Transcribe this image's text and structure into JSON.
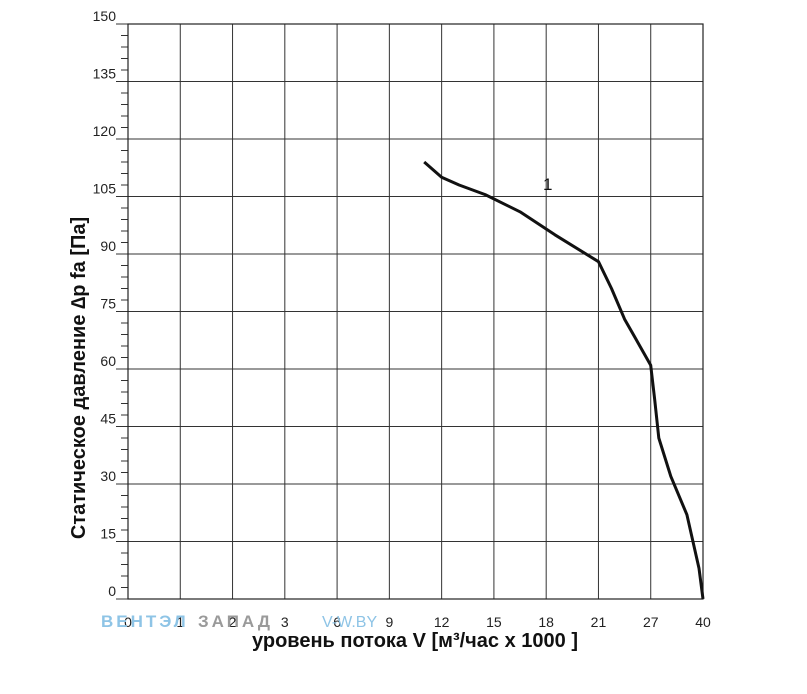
{
  "chart_data": {
    "type": "line",
    "xlabel": "уровень потока  V [м³/час х 1000 ]",
    "ylabel": "Статическое давление  ∆p fa [Па]",
    "x_ticks": [
      "0",
      "1",
      "2",
      "3",
      "6",
      "9",
      "12",
      "15",
      "18",
      "21",
      "27",
      "40"
    ],
    "y_ticks": [
      0,
      15,
      30,
      45,
      60,
      75,
      90,
      105,
      120,
      135,
      150
    ],
    "ylim": [
      0,
      150
    ],
    "grid": true,
    "series": [
      {
        "name": "1",
        "color": "#111111",
        "points": [
          {
            "x": 11,
            "y": 114
          },
          {
            "x": 12,
            "y": 110
          },
          {
            "x": 13,
            "y": 108
          },
          {
            "x": 14.5,
            "y": 105.5
          },
          {
            "x": 16.5,
            "y": 101
          },
          {
            "x": 18.5,
            "y": 95
          },
          {
            "x": 21,
            "y": 88
          },
          {
            "x": 22.5,
            "y": 81
          },
          {
            "x": 24,
            "y": 73
          },
          {
            "x": 25.5,
            "y": 67
          },
          {
            "x": 27,
            "y": 61
          },
          {
            "x": 28,
            "y": 52
          },
          {
            "x": 29,
            "y": 42
          },
          {
            "x": 32,
            "y": 32
          },
          {
            "x": 36,
            "y": 22
          },
          {
            "x": 39,
            "y": 8
          },
          {
            "x": 40,
            "y": 0
          }
        ]
      }
    ]
  },
  "watermark": {
    "part1": "ВЕНТЭЛ",
    "part2": "ЗАПАД",
    "part3": "V-W.BY",
    "color1": "#8ec4e6",
    "color2": "#9a9a9a"
  }
}
